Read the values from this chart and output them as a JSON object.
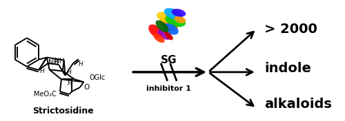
{
  "bg_color": "#ffffff",
  "fig_width": 5.0,
  "fig_height": 1.76,
  "dpi": 100,
  "strictosidine_label": "Strictosidine",
  "sg_label": "SG",
  "inhibitor_label": "inhibitor 1",
  "text_line1": "> 2000",
  "text_line2": "indole",
  "text_line3": "alkaloids",
  "arrow_color": "#000000",
  "text_color": "#000000"
}
